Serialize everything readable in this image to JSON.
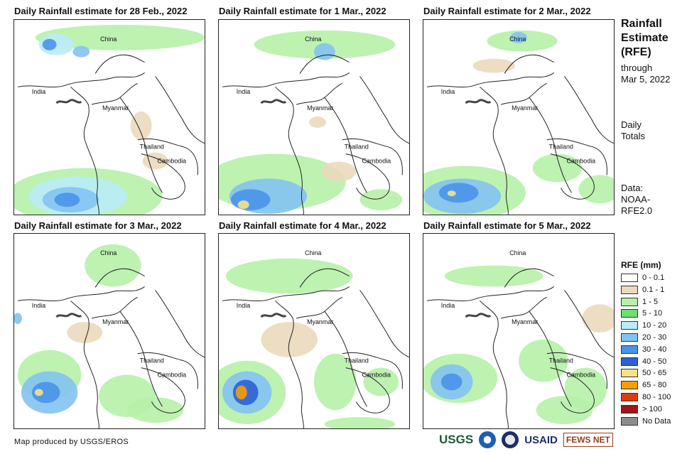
{
  "panels": [
    {
      "title": "Daily Rainfall estimate for 28 Feb., 2022"
    },
    {
      "title": "Daily Rainfall estimate for 1 Mar., 2022"
    },
    {
      "title": "Daily Rainfall estimate for 2 Mar., 2022"
    },
    {
      "title": "Daily Rainfall estimate for 3 Mar., 2022"
    },
    {
      "title": "Daily Rainfall estimate for 4 Mar., 2022"
    },
    {
      "title": "Daily Rainfall estimate for 5 Mar., 2022"
    }
  ],
  "map_labels": {
    "china": "China",
    "india": "India",
    "myanmar": "Myanmar",
    "thailand": "Thailand",
    "cambodia": "Cambodia"
  },
  "sidebar": {
    "title_line1": "Rainfall",
    "title_line2": "Estimate",
    "title_line3": "(RFE)",
    "through": "through",
    "date": "Mar 5, 2022",
    "daily": "Daily",
    "totals": "Totals",
    "data_label": "Data:",
    "data_src1": "NOAA-",
    "data_src2": "RFE2.0"
  },
  "legend": {
    "title": "RFE (mm)",
    "items": [
      {
        "label": "0 - 0.1",
        "color": "#ffffff"
      },
      {
        "label": "0.1 - 1",
        "color": "#ead9bd"
      },
      {
        "label": "1 - 5",
        "color": "#b6f1a8"
      },
      {
        "label": "5 - 10",
        "color": "#6ee070"
      },
      {
        "label": "10 - 20",
        "color": "#b8ecf7"
      },
      {
        "label": "20 - 30",
        "color": "#83c3f2"
      },
      {
        "label": "30 - 40",
        "color": "#4a93ea"
      },
      {
        "label": "40 - 50",
        "color": "#2e5fd6"
      },
      {
        "label": "50 - 65",
        "color": "#f4e28a"
      },
      {
        "label": "65 - 80",
        "color": "#f5a000"
      },
      {
        "label": "80 - 100",
        "color": "#e03c0a"
      },
      {
        "label": "> 100",
        "color": "#a01515"
      },
      {
        "label": "No Data",
        "color": "#8c8c8c"
      }
    ]
  },
  "footer": "Map produced by USGS/EROS",
  "logos": {
    "usgs": "USGS",
    "usaid": "USAID",
    "fews": "FEWS NET"
  }
}
